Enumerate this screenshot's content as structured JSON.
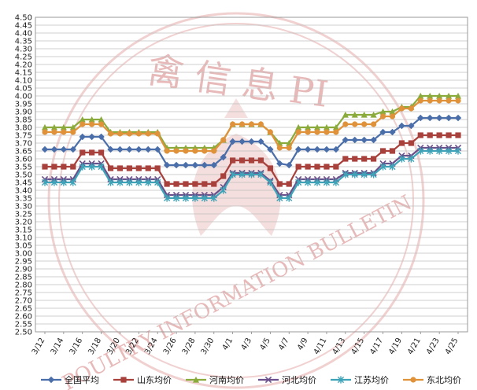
{
  "watermark": {
    "top_text": "禽 信 息 PI",
    "bottom_text": "POULTRY INFORMATION BULLETIN",
    "color": "#e8b9b9"
  },
  "chart_data": {
    "type": "line",
    "ylim": [
      2.5,
      4.5
    ],
    "ytick_step": 0.05,
    "yticks": [
      "2.50",
      "2.55",
      "2.60",
      "2.65",
      "2.70",
      "2.75",
      "2.80",
      "2.85",
      "2.90",
      "2.95",
      "3.00",
      "3.05",
      "3.10",
      "3.15",
      "3.20",
      "3.25",
      "3.30",
      "3.35",
      "3.40",
      "3.45",
      "3.50",
      "3.55",
      "3.60",
      "3.65",
      "3.70",
      "3.75",
      "3.80",
      "3.85",
      "3.90",
      "3.95",
      "4.00",
      "4.05",
      "4.10",
      "4.15",
      "4.20",
      "4.25",
      "4.30",
      "4.35",
      "4.40",
      "4.45",
      "4.50"
    ],
    "x": [
      "3/12",
      "3/13",
      "3/14",
      "3/15",
      "3/16",
      "3/17",
      "3/18",
      "3/19",
      "3/20",
      "3/21",
      "3/22",
      "3/23",
      "3/24",
      "3/25",
      "3/26",
      "3/27",
      "3/28",
      "3/29",
      "3/30",
      "3/31",
      "4/1",
      "4/2",
      "4/3",
      "4/4",
      "4/5",
      "4/6",
      "4/7",
      "4/8",
      "4/9",
      "4/10",
      "4/11",
      "4/12",
      "4/13",
      "4/14",
      "4/15",
      "4/16",
      "4/17",
      "4/18",
      "4/19",
      "4/20",
      "4/21",
      "4/22",
      "4/23",
      "4/24",
      "4/25"
    ],
    "xtick_labels": [
      "3/12",
      "3/14",
      "3/16",
      "3/18",
      "3/20",
      "3/22",
      "3/24",
      "3/26",
      "3/28",
      "3/30",
      "4/1",
      "4/3",
      "4/5",
      "4/7",
      "4/9",
      "4/11",
      "4/13",
      "4/15",
      "4/17",
      "4/19",
      "4/21",
      "4/23",
      "4/25"
    ],
    "grid": true,
    "legend_position": "bottom",
    "series": [
      {
        "name": "全国平均",
        "color": "#4a6ea9",
        "marker": "diamond",
        "values": [
          3.66,
          3.66,
          3.66,
          3.66,
          3.74,
          3.74,
          3.74,
          3.66,
          3.66,
          3.66,
          3.66,
          3.66,
          3.66,
          3.56,
          3.56,
          3.56,
          3.56,
          3.56,
          3.56,
          3.61,
          3.71,
          3.71,
          3.71,
          3.71,
          3.66,
          3.57,
          3.56,
          3.66,
          3.66,
          3.66,
          3.66,
          3.66,
          3.72,
          3.72,
          3.72,
          3.72,
          3.77,
          3.77,
          3.81,
          3.81,
          3.86,
          3.86,
          3.86,
          3.86,
          3.86
        ]
      },
      {
        "name": "山东均价",
        "color": "#a8403c",
        "marker": "square",
        "values": [
          3.55,
          3.55,
          3.55,
          3.55,
          3.64,
          3.64,
          3.64,
          3.54,
          3.54,
          3.54,
          3.54,
          3.54,
          3.54,
          3.44,
          3.44,
          3.44,
          3.44,
          3.44,
          3.44,
          3.49,
          3.59,
          3.59,
          3.59,
          3.59,
          3.54,
          3.44,
          3.44,
          3.55,
          3.55,
          3.55,
          3.55,
          3.55,
          3.6,
          3.6,
          3.6,
          3.6,
          3.65,
          3.65,
          3.7,
          3.7,
          3.75,
          3.75,
          3.75,
          3.75,
          3.75
        ]
      },
      {
        "name": "河南均价",
        "color": "#8aab3c",
        "marker": "triangle",
        "values": [
          3.8,
          3.8,
          3.8,
          3.8,
          3.85,
          3.85,
          3.85,
          3.77,
          3.77,
          3.77,
          3.77,
          3.77,
          3.77,
          3.67,
          3.67,
          3.67,
          3.67,
          3.67,
          3.67,
          3.72,
          3.82,
          3.82,
          3.82,
          3.82,
          3.77,
          3.7,
          3.7,
          3.8,
          3.8,
          3.8,
          3.8,
          3.8,
          3.88,
          3.88,
          3.88,
          3.88,
          3.9,
          3.9,
          3.93,
          3.93,
          4.0,
          4.0,
          4.0,
          4.0,
          4.0
        ]
      },
      {
        "name": "河北均价",
        "color": "#6a4f8a",
        "marker": "x",
        "values": [
          3.47,
          3.47,
          3.47,
          3.47,
          3.57,
          3.57,
          3.57,
          3.47,
          3.47,
          3.47,
          3.47,
          3.47,
          3.47,
          3.37,
          3.37,
          3.37,
          3.37,
          3.37,
          3.37,
          3.42,
          3.51,
          3.51,
          3.51,
          3.51,
          3.46,
          3.37,
          3.37,
          3.47,
          3.47,
          3.47,
          3.47,
          3.47,
          3.51,
          3.51,
          3.51,
          3.51,
          3.57,
          3.57,
          3.62,
          3.62,
          3.67,
          3.67,
          3.67,
          3.67,
          3.67
        ]
      },
      {
        "name": "江苏均价",
        "color": "#3fa3b8",
        "marker": "asterisk",
        "values": [
          3.45,
          3.45,
          3.45,
          3.45,
          3.55,
          3.55,
          3.55,
          3.45,
          3.45,
          3.45,
          3.45,
          3.45,
          3.45,
          3.35,
          3.35,
          3.35,
          3.35,
          3.35,
          3.35,
          3.4,
          3.5,
          3.5,
          3.5,
          3.5,
          3.45,
          3.35,
          3.35,
          3.45,
          3.45,
          3.45,
          3.45,
          3.45,
          3.5,
          3.5,
          3.5,
          3.5,
          3.55,
          3.55,
          3.6,
          3.6,
          3.65,
          3.65,
          3.65,
          3.65,
          3.65
        ]
      },
      {
        "name": "东北均价",
        "color": "#e0923a",
        "marker": "circle",
        "values": [
          3.77,
          3.77,
          3.77,
          3.77,
          3.82,
          3.82,
          3.82,
          3.76,
          3.76,
          3.76,
          3.76,
          3.76,
          3.76,
          3.65,
          3.65,
          3.65,
          3.65,
          3.65,
          3.65,
          3.72,
          3.82,
          3.82,
          3.82,
          3.82,
          3.77,
          3.67,
          3.67,
          3.77,
          3.77,
          3.77,
          3.77,
          3.77,
          3.82,
          3.82,
          3.82,
          3.82,
          3.87,
          3.87,
          3.92,
          3.92,
          3.97,
          3.97,
          3.97,
          3.97,
          3.97
        ]
      }
    ]
  }
}
